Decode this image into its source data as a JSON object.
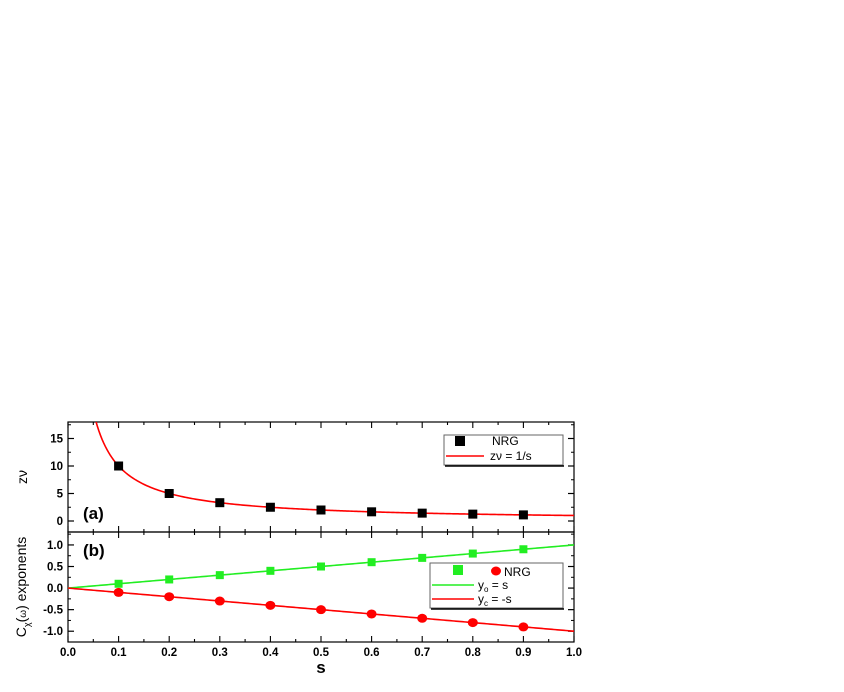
{
  "chart_data": [
    {
      "type": "scatter",
      "panel_label": "(a)",
      "xlim": [
        0.0,
        1.0
      ],
      "ylim": [
        -2,
        18
      ],
      "xlabel": "",
      "ylabel": "zν",
      "ytick_values": [
        0,
        5,
        10,
        15
      ],
      "ytick_labels": [
        "0",
        "5",
        "10",
        "15"
      ],
      "legend_position": "top-right",
      "series": [
        {
          "name": "NRG",
          "kind": "scatter",
          "marker": "square",
          "color": "#000000",
          "x": [
            0.1,
            0.2,
            0.3,
            0.4,
            0.5,
            0.6,
            0.7,
            0.8,
            0.9
          ],
          "y": [
            10.0,
            5.0,
            3.33,
            2.5,
            2.0,
            1.67,
            1.43,
            1.25,
            1.11
          ]
        },
        {
          "name": "zν = 1/s",
          "kind": "line",
          "formula": "1/s",
          "color": "#ff0000"
        }
      ]
    },
    {
      "type": "scatter",
      "panel_label": "(b)",
      "xlim": [
        0.0,
        1.0
      ],
      "ylim": [
        -1.25,
        1.3
      ],
      "xlabel": "s",
      "ylabel": "exponents",
      "ylabel_prefix": "C",
      "ylabel_sub": "χ",
      "ylabel_paren": "ω",
      "ytick_values": [
        -1.0,
        -0.5,
        0.0,
        0.5,
        1.0
      ],
      "ytick_labels": [
        "-1.0",
        "-0.5",
        "0.0",
        "0.5",
        "1.0"
      ],
      "xtick_values": [
        0.0,
        0.1,
        0.2,
        0.3,
        0.4,
        0.5,
        0.6,
        0.7,
        0.8,
        0.9,
        1.0
      ],
      "xtick_labels": [
        "0.0",
        "0.1",
        "0.2",
        "0.3",
        "0.4",
        "0.5",
        "0.6",
        "0.7",
        "0.8",
        "0.9",
        "1.0"
      ],
      "legend_position": "right",
      "legend_nrg_label": "NRG",
      "series": [
        {
          "name": "",
          "kind": "scatter",
          "marker": "square",
          "color": "#22ee22",
          "x": [
            0.1,
            0.2,
            0.3,
            0.4,
            0.5,
            0.6,
            0.7,
            0.8,
            0.9
          ],
          "y": [
            0.1,
            0.2,
            0.3,
            0.4,
            0.5,
            0.6,
            0.7,
            0.8,
            0.9
          ]
        },
        {
          "name": "",
          "kind": "scatter",
          "marker": "circle",
          "color": "#ff0000",
          "x": [
            0.1,
            0.2,
            0.3,
            0.4,
            0.5,
            0.6,
            0.7,
            0.8,
            0.9
          ],
          "y": [
            -0.1,
            -0.2,
            -0.3,
            -0.4,
            -0.5,
            -0.6,
            -0.7,
            -0.8,
            -0.9
          ]
        },
        {
          "name": "y",
          "sub": "o",
          "rest": " = s",
          "kind": "line",
          "formula": "s",
          "color": "#22ee22"
        },
        {
          "name": "y",
          "sub": "c",
          "rest": " = -s",
          "kind": "line",
          "formula": "-s",
          "color": "#ff0000"
        }
      ]
    }
  ]
}
